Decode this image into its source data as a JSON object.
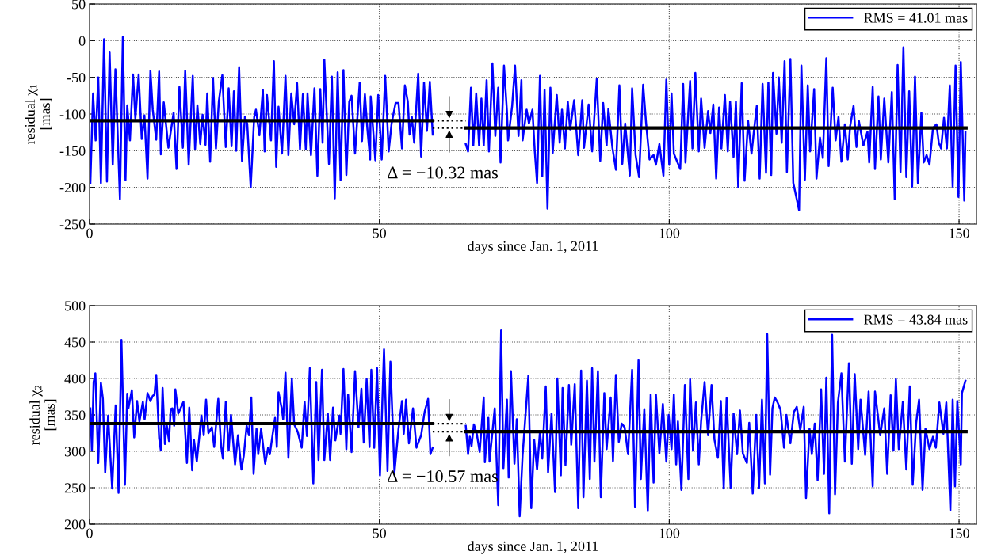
{
  "chart_data": [
    {
      "type": "line",
      "xlabel": "days since Jan. 1, 2011",
      "ylabel": "residual χ$_{1}$\n[mas]",
      "xlim": [
        0,
        153
      ],
      "xticks": [
        0,
        50,
        100,
        150
      ],
      "ylim": [
        -250,
        50
      ],
      "yticks": [
        -250,
        -200,
        -150,
        -100,
        -50,
        0,
        50
      ],
      "grid": true,
      "legend": "top right",
      "annotations": [
        "Δ = −10.32 mas"
      ],
      "series": [
        {
          "name": "RMS = 41.01 mas",
          "color": "#0000ff",
          "line_style": "solid",
          "x": [
            0.14,
            0.6,
            1.05,
            1.5,
            1.96,
            2.5,
            3.0,
            3.46,
            4.0,
            4.46,
            5.24,
            5.74,
            6.2,
            6.5,
            6.97,
            7.5,
            7.9,
            8.47,
            9.0,
            9.47,
            10.0,
            10.5,
            10.9,
            11.5,
            12.0,
            12.3,
            12.8,
            13.6,
            14.5,
            15.0,
            15.5,
            16.1,
            16.5,
            17.1,
            17.8,
            18.2,
            18.6,
            19.1,
            19.5,
            20.0,
            20.3,
            20.8,
            21.3,
            21.8,
            22.3,
            22.9,
            23.5,
            24.0,
            24.5,
            24.9,
            25.3,
            25.8,
            26.3,
            26.8,
            27.2,
            27.8,
            28.4,
            28.7,
            29.3,
            29.9,
            30.2,
            30.6,
            31.3,
            31.8,
            32.2,
            32.6,
            33.2,
            33.8,
            34.3,
            34.8,
            35.3,
            35.8,
            36.3,
            36.8,
            37.3,
            37.6,
            38.2,
            38.8,
            39.3,
            39.8,
            40.2,
            40.5,
            41.3,
            41.8,
            42.3,
            42.8,
            43.3,
            43.8,
            44.3,
            44.8,
            45.2,
            45.8,
            46.6,
            47.0,
            47.5,
            47.9,
            48.4,
            48.5,
            49.3,
            49.8,
            50.4,
            51.0,
            51.6,
            52.1,
            52.8,
            53.3,
            53.9,
            54.4,
            54.9,
            55.2,
            55.6,
            56.0,
            56.7,
            57.2,
            57.7,
            58.2,
            58.7,
            59.2,
            62.0,
            64.9,
            65.3,
            65.8,
            66.2,
            66.7,
            67.2,
            67.6,
            68.0,
            68.5,
            68.9,
            69.5,
            70.0,
            70.5,
            70.9,
            71.5,
            72.0,
            72.2,
            72.9,
            73.4,
            74.0,
            74.5,
            74.7,
            75.4,
            75.8,
            76.4,
            76.8,
            77.2,
            77.7,
            78.1,
            78.5,
            79.0,
            79.5,
            79.9,
            80.6,
            81.1,
            81.5,
            82.0,
            82.5,
            82.9,
            83.6,
            84.3,
            85.0,
            85.3,
            86.1,
            86.7,
            87.5,
            88.1,
            88.6,
            89.2,
            89.5,
            90.2,
            90.8,
            91.4,
            91.9,
            92.4,
            93.2,
            93.6,
            94.2,
            94.8,
            95.5,
            96.0,
            96.6,
            97.3,
            97.7,
            98.3,
            99.0,
            99.5,
            100.0,
            100.4,
            100.8,
            101.9,
            102.4,
            102.8,
            103.6,
            104.0,
            104.5,
            105.1,
            105.5,
            106.1,
            106.7,
            107.1,
            107.6,
            108.1,
            108.6,
            109.0,
            109.6,
            110.1,
            110.5,
            111.1,
            111.5,
            111.9,
            112.5,
            113.0,
            113.6,
            114.2,
            114.6,
            115.1,
            115.6,
            116.1,
            116.7,
            117.1,
            117.6,
            117.9,
            118.5,
            118.9,
            119.4,
            119.9,
            120.3,
            120.9,
            121.4,
            122.4,
            122.8,
            123.4,
            123.9,
            124.3,
            125.0,
            125.4,
            126.0,
            126.5,
            127.1,
            127.5,
            128.2,
            128.7,
            129.2,
            129.7,
            130.3,
            130.8,
            131.2,
            131.8,
            132.3,
            132.7,
            133.5,
            134.2,
            134.5,
            135.1,
            135.5,
            136.1,
            136.5,
            137.1,
            137.8,
            138.4,
            138.9,
            139.4,
            139.9,
            140.4,
            140.9,
            141.4,
            141.9,
            142.4,
            142.9,
            143.5,
            143.9,
            144.4,
            144.9,
            145.5,
            146.1,
            146.5,
            146.9,
            147.4,
            147.9,
            148.4,
            148.9,
            149.4,
            149.9,
            150.3,
            150.9,
            151.1
          ],
          "values": [
            -194,
            -72,
            -136,
            -50,
            -194,
            2,
            -192,
            -16,
            -169,
            -39,
            -216,
            5,
            -190,
            -88,
            -136,
            -46,
            -106,
            -46,
            -134,
            -102,
            -188,
            -41,
            -94,
            -135,
            -42,
            -155,
            -84,
            -146,
            -98,
            -175,
            -63,
            -146,
            -41,
            -169,
            -48,
            -148,
            -88,
            -141,
            -101,
            -142,
            -72,
            -165,
            -51,
            -147,
            -83,
            -47,
            -145,
            -65,
            -144,
            -69,
            -150,
            -36,
            -164,
            -104,
            -113,
            -200,
            -104,
            -94,
            -129,
            -67,
            -151,
            -74,
            -136,
            -28,
            -172,
            -90,
            -154,
            -48,
            -156,
            -72,
            -114,
            -58,
            -148,
            -73,
            -148,
            -72,
            -156,
            -65,
            -184,
            -66,
            -139,
            -26,
            -168,
            -49,
            -215,
            -43,
            -190,
            -40,
            -183,
            -83,
            -75,
            -154,
            -57,
            -137,
            -73,
            -118,
            -162,
            -76,
            -163,
            -74,
            -162,
            -48,
            -151,
            -113,
            -85,
            -85,
            -147,
            -61,
            -83,
            -128,
            -104,
            -139,
            -45,
            -158,
            -57,
            -123,
            -56,
            -128,
            null,
            -141,
            -151,
            -64,
            -143,
            -72,
            -143,
            -79,
            -143,
            -54,
            -151,
            -31,
            -130,
            -64,
            -166,
            -34,
            -96,
            -136,
            -89,
            -34,
            -130,
            -54,
            -136,
            -94,
            -113,
            -94,
            -150,
            -194,
            -48,
            -185,
            -67,
            -229,
            -64,
            -153,
            -74,
            -139,
            -94,
            -147,
            -83,
            -121,
            -81,
            -156,
            -81,
            -146,
            -87,
            -151,
            -52,
            -164,
            -85,
            -143,
            -93,
            -146,
            -176,
            -61,
            -168,
            -113,
            -184,
            -65,
            -156,
            -186,
            -60,
            -112,
            -162,
            -156,
            -169,
            -141,
            -184,
            -53,
            -169,
            -72,
            -154,
            -175,
            -59,
            -166,
            -55,
            -147,
            -44,
            -151,
            -79,
            -146,
            -96,
            -126,
            -87,
            -188,
            -91,
            -147,
            -74,
            -151,
            -83,
            -159,
            -83,
            -200,
            -58,
            -191,
            -109,
            -154,
            -124,
            -89,
            -188,
            -59,
            -180,
            -57,
            -183,
            -44,
            -127,
            -50,
            -139,
            -28,
            -179,
            -25,
            -194,
            -231,
            -34,
            -190,
            -61,
            -151,
            -66,
            -188,
            -132,
            -160,
            -24,
            -171,
            -64,
            -136,
            -104,
            -165,
            -114,
            -162,
            -117,
            -89,
            -145,
            -109,
            -143,
            -124,
            -166,
            -63,
            -175,
            -76,
            -162,
            -79,
            -166,
            -70,
            -216,
            -33,
            -179,
            -9,
            -186,
            -69,
            -199,
            -49,
            -194,
            -98,
            -166,
            -156,
            -169,
            -119,
            -114,
            -139,
            -147,
            -105,
            -147,
            -61,
            -199,
            -34,
            -213,
            -29,
            -218,
            -125
          ]
        },
        {
          "color": "#000000",
          "line_style": "solid",
          "x": [
            0,
            59.2
          ],
          "values": [
            -109,
            -109
          ]
        },
        {
          "color": "#000000",
          "line_style": "solid",
          "x": [
            64.9,
            151.2
          ],
          "values": [
            -119,
            -119
          ]
        },
        {
          "color": "#000000",
          "line_style": "dotted",
          "x": [
            59.2,
            64.9
          ],
          "values": [
            -109,
            -109
          ]
        },
        {
          "color": "#000000",
          "line_style": "dotted",
          "x": [
            59.2,
            64.9
          ],
          "values": [
            -119,
            -119
          ]
        }
      ]
    },
    {
      "type": "line",
      "xlabel": "days since Jan. 1, 2011",
      "ylabel": "residual χ$_{2}$\n[mas]",
      "xlim": [
        0,
        153
      ],
      "xticks": [
        0,
        50,
        100,
        150
      ],
      "ylim": [
        200,
        500
      ],
      "yticks": [
        200,
        250,
        300,
        350,
        400,
        450,
        500
      ],
      "grid": true,
      "legend": "top right",
      "annotations": [
        "Δ = −10.57 mas"
      ],
      "series": [
        {
          "name": "RMS = 43.84 mas",
          "color": "#0000ff",
          "line_style": "solid",
          "x": [
            0.14,
            0.4,
            0.7,
            1.0,
            1.5,
            1.96,
            2.3,
            2.7,
            3.2,
            3.9,
            4.5,
            5.0,
            5.5,
            6.1,
            6.5,
            6.7,
            7.3,
            7.7,
            8.2,
            8.6,
            9.2,
            9.5,
            10.0,
            10.5,
            10.9,
            11.2,
            11.5,
            12.0,
            12.3,
            12.6,
            13.0,
            13.3,
            13.7,
            14.0,
            14.3,
            14.6,
            14.8,
            15.3,
            16.2,
            16.8,
            17.2,
            17.7,
            18.0,
            18.5,
            19.3,
            19.7,
            20.1,
            20.5,
            21.1,
            21.5,
            22.2,
            22.7,
            23.0,
            23.5,
            24.0,
            24.4,
            25.1,
            25.6,
            26.2,
            26.6,
            27.1,
            27.5,
            27.9,
            28.3,
            28.8,
            29.1,
            29.6,
            30.3,
            30.8,
            31.1,
            31.6,
            32.0,
            32.3,
            32.6,
            33.2,
            33.4,
            33.8,
            34.3,
            34.9,
            35.3,
            35.9,
            36.6,
            37.1,
            37.5,
            38.0,
            38.6,
            39.1,
            39.5,
            40.1,
            40.5,
            41.1,
            41.5,
            42.0,
            42.4,
            42.8,
            43.1,
            43.3,
            43.8,
            44.3,
            44.6,
            45.2,
            45.8,
            46.4,
            46.9,
            47.3,
            47.8,
            48.3,
            48.6,
            49.1,
            49.6,
            50.1,
            50.8,
            51.4,
            51.9,
            52.6,
            53.3,
            53.9,
            54.2,
            54.6,
            55.1,
            55.8,
            56.4,
            57.2,
            57.8,
            58.4,
            58.8,
            59.2,
            62.0,
            64.9,
            65.3,
            65.6,
            65.9,
            66.3,
            66.8,
            67.3,
            68.0,
            68.2,
            68.8,
            69.0,
            69.9,
            70.5,
            71.0,
            71.4,
            72.0,
            72.3,
            72.7,
            73.3,
            73.7,
            74.2,
            74.7,
            75.7,
            76.2,
            76.7,
            77.2,
            77.7,
            78.1,
            78.7,
            79.1,
            79.7,
            80.3,
            80.7,
            81.3,
            81.6,
            82.1,
            82.7,
            83.1,
            83.7,
            84.3,
            84.8,
            85.2,
            85.8,
            86.3,
            86.7,
            87.1,
            87.7,
            88.2,
            88.8,
            89.2,
            89.9,
            90.3,
            90.8,
            91.3,
            91.8,
            92.3,
            92.9,
            93.6,
            94.1,
            94.7,
            95.1,
            95.7,
            96.3,
            96.8,
            97.3,
            97.7,
            98.3,
            98.9,
            99.5,
            99.9,
            100.4,
            100.8,
            101.2,
            101.5,
            102.1,
            102.7,
            103.3,
            103.6,
            104.1,
            104.6,
            105.1,
            105.5,
            106.1,
            106.7,
            107.3,
            107.8,
            108.4,
            108.9,
            109.4,
            109.9,
            110.6,
            111.1,
            111.7,
            112.2,
            112.7,
            113.4,
            113.8,
            114.4,
            115.0,
            115.5,
            116.0,
            116.5,
            116.9,
            117.4,
            117.8,
            118.2,
            118.7,
            119.2,
            119.8,
            120.2,
            120.9,
            121.5,
            122.0,
            122.6,
            123.2,
            123.6,
            124.2,
            124.6,
            125.1,
            125.6,
            126.2,
            126.7,
            127.1,
            127.6,
            128.1,
            128.6,
            129.1,
            129.7,
            130.3,
            131.0,
            131.5,
            132.0,
            132.6,
            133.0,
            133.8,
            134.4,
            135.1,
            135.5,
            136.4,
            137.1,
            137.6,
            138.2,
            138.7,
            139.1,
            139.6,
            140.3,
            140.9,
            141.5,
            142.0,
            142.6,
            143.1,
            143.7,
            144.2,
            144.9,
            145.5,
            146.0,
            146.6,
            147.3,
            147.8,
            148.5,
            148.9,
            149.3,
            149.7,
            150.3,
            150.5,
            151.1
          ],
          "values": [
            359,
            301,
            395,
            407,
            284,
            394,
            372,
            271,
            349,
            249,
            363,
            243,
            453,
            254,
            379,
            359,
            384,
            319,
            369,
            341,
            368,
            344,
            380,
            369,
            376,
            378,
            405,
            318,
            301,
            387,
            310,
            337,
            314,
            358,
            359,
            335,
            385,
            352,
            368,
            284,
            360,
            274,
            316,
            286,
            349,
            322,
            371,
            325,
            333,
            306,
            372,
            307,
            290,
            368,
            301,
            350,
            282,
            322,
            275,
            294,
            335,
            322,
            374,
            269,
            331,
            296,
            331,
            283,
            305,
            296,
            324,
            346,
            306,
            381,
            357,
            344,
            408,
            291,
            400,
            337,
            327,
            305,
            368,
            321,
            414,
            256,
            395,
            288,
            412,
            288,
            352,
            288,
            360,
            315,
            335,
            349,
            324,
            413,
            303,
            378,
            299,
            410,
            333,
            386,
            312,
            399,
            306,
            412,
            305,
            414,
            267,
            440,
            273,
            423,
            271,
            331,
            369,
            324,
            371,
            311,
            359,
            305,
            322,
            354,
            372,
            296,
            305,
            null,
            335,
            296,
            320,
            307,
            337,
            324,
            299,
            374,
            285,
            346,
            286,
            359,
            226,
            466,
            277,
            371,
            264,
            410,
            283,
            344,
            211,
            294,
            404,
            222,
            316,
            275,
            327,
            290,
            389,
            271,
            352,
            244,
            400,
            267,
            387,
            281,
            391,
            309,
            392,
            222,
            411,
            237,
            397,
            262,
            414,
            286,
            410,
            237,
            380,
            303,
            374,
            286,
            405,
            313,
            338,
            333,
            296,
            412,
            224,
            425,
            262,
            358,
            218,
            378,
            257,
            378,
            297,
            365,
            286,
            350,
            303,
            378,
            282,
            341,
            247,
            391,
            262,
            399,
            301,
            367,
            282,
            341,
            395,
            322,
            391,
            316,
            291,
            369,
            249,
            373,
            250,
            352,
            296,
            356,
            297,
            284,
            339,
            242,
            350,
            250,
            371,
            256,
            461,
            268,
            359,
            374,
            367,
            357,
            305,
            350,
            311,
            354,
            361,
            329,
            361,
            236,
            331,
            296,
            338,
            260,
            385,
            269,
            401,
            215,
            460,
            241,
            367,
            407,
            286,
            421,
            283,
            406,
            303,
            371,
            295,
            382,
            252,
            382,
            322,
            359,
            269,
            377,
            301,
            399,
            303,
            368,
            275,
            389,
            254,
            339,
            371,
            247,
            331,
            303,
            320,
            305,
            367,
            324,
            367,
            219,
            371,
            252,
            369,
            282,
            380,
            397
          ]
        },
        {
          "color": "#000000",
          "line_style": "solid",
          "x": [
            0,
            59.2
          ],
          "values": [
            338,
            338
          ]
        },
        {
          "color": "#000000",
          "line_style": "solid",
          "x": [
            64.9,
            151.2
          ],
          "values": [
            327,
            327
          ]
        },
        {
          "color": "#000000",
          "line_style": "dotted",
          "x": [
            59.2,
            64.9
          ],
          "values": [
            338,
            338
          ]
        },
        {
          "color": "#000000",
          "line_style": "dotted",
          "x": [
            59.2,
            64.9
          ],
          "values": [
            327,
            327
          ]
        }
      ]
    }
  ]
}
